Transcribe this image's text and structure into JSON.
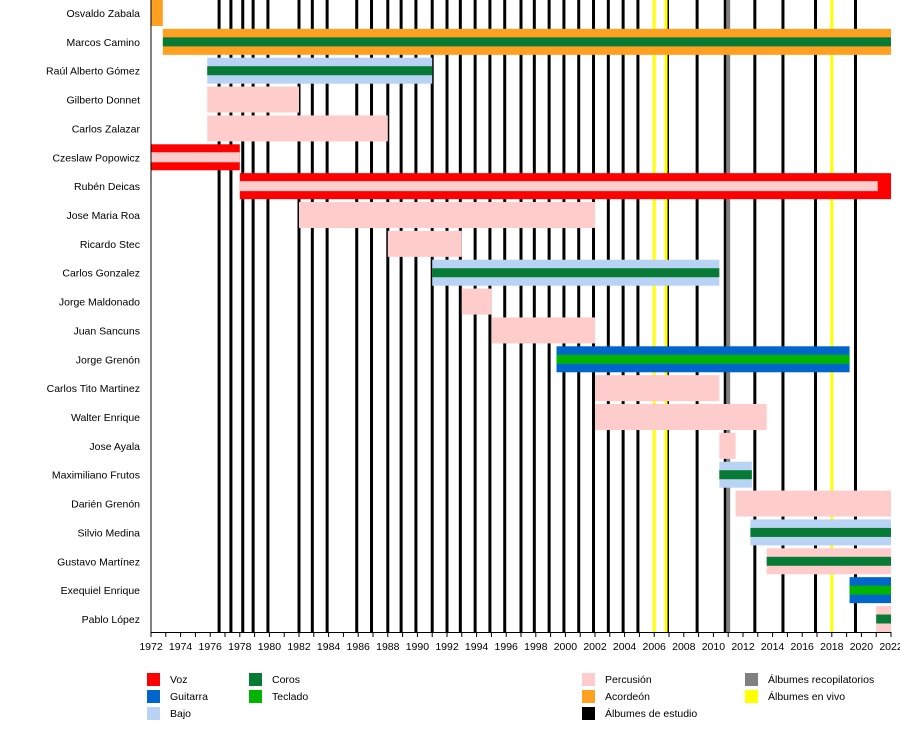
{
  "chart_data": {
    "type": "timeline",
    "xlim": [
      1972,
      2022
    ],
    "x_ticks": [
      1972,
      1974,
      1976,
      1978,
      1980,
      1982,
      1984,
      1986,
      1988,
      1990,
      1992,
      1994,
      1996,
      1998,
      2000,
      2002,
      2004,
      2006,
      2008,
      2010,
      2012,
      2014,
      2016,
      2018,
      2020,
      2022
    ],
    "colors": {
      "Voz": "#ff0000",
      "Guitarra": "#0066cc",
      "Bajo": "#b9d3f5",
      "Coros": "#077a35",
      "Teclado": "#00b400",
      "Percusión": "#ffcccc",
      "Acordeón": "#ffa020",
      "Álbumes recopilatorios": "#808080",
      "Álbumes en vivo": "#ffff00",
      "Álbumes de estudio": "#000000"
    },
    "members": [
      {
        "name": "Osvaldo Zabala",
        "bars": [
          {
            "start": 1972,
            "end": 1972.8,
            "role": "Acordeón"
          }
        ]
      },
      {
        "name": "Marcos Camino",
        "bars": [
          {
            "start": 1972.8,
            "end": 2022,
            "role": "Acordeón",
            "secondary": "Coros"
          }
        ]
      },
      {
        "name": "Raúl Alberto Gómez",
        "bars": [
          {
            "start": 1975.8,
            "end": 1991,
            "role": "Bajo",
            "secondary": "Coros"
          }
        ]
      },
      {
        "name": "Gilberto Donnet",
        "bars": [
          {
            "start": 1975.8,
            "end": 1982,
            "role": "Percusión"
          }
        ]
      },
      {
        "name": "Carlos Zalazar",
        "bars": [
          {
            "start": 1975.8,
            "end": 1988,
            "role": "Percusión"
          }
        ]
      },
      {
        "name": "Czeslaw Popowicz",
        "bars": [
          {
            "start": 1972,
            "end": 1978,
            "role": "Voz",
            "secondary": "Percusión"
          }
        ]
      },
      {
        "name": "Rubén Deicas",
        "bars": [
          {
            "start": 1978,
            "end": 2022,
            "role": "Voz",
            "secondary": "Percusión",
            "secondary_end": 2021.1
          }
        ]
      },
      {
        "name": "Jose Maria Roa",
        "bars": [
          {
            "start": 1982,
            "end": 2002,
            "role": "Percusión"
          }
        ]
      },
      {
        "name": "Ricardo Stec",
        "bars": [
          {
            "start": 1988,
            "end": 1993,
            "role": "Percusión"
          }
        ]
      },
      {
        "name": "Carlos Gonzalez",
        "bars": [
          {
            "start": 1991,
            "end": 2010.4,
            "role": "Bajo",
            "secondary": "Coros"
          }
        ]
      },
      {
        "name": "Jorge Maldonado",
        "bars": [
          {
            "start": 1993,
            "end": 1995,
            "role": "Percusión"
          }
        ]
      },
      {
        "name": "Juan Sancuns",
        "bars": [
          {
            "start": 1995,
            "end": 2002,
            "role": "Percusión"
          }
        ]
      },
      {
        "name": "Jorge Grenón",
        "bars": [
          {
            "start": 1999.4,
            "end": 2019.2,
            "role": "Guitarra",
            "secondary": "Teclado"
          }
        ]
      },
      {
        "name": "Carlos Tito Martinez",
        "bars": [
          {
            "start": 2002,
            "end": 2010.4,
            "role": "Percusión"
          }
        ]
      },
      {
        "name": "Walter Enrique",
        "bars": [
          {
            "start": 2002,
            "end": 2013.6,
            "role": "Percusión"
          }
        ]
      },
      {
        "name": "Jose Ayala",
        "bars": [
          {
            "start": 2010.4,
            "end": 2011.5,
            "role": "Percusión"
          }
        ]
      },
      {
        "name": "Maximiliano Frutos",
        "bars": [
          {
            "start": 2010.4,
            "end": 2012.6,
            "role": "Bajo",
            "secondary": "Coros"
          }
        ]
      },
      {
        "name": "Darién Grenón",
        "bars": [
          {
            "start": 2011.5,
            "end": 2022,
            "role": "Percusión"
          }
        ]
      },
      {
        "name": "Silvio Medina",
        "bars": [
          {
            "start": 2012.5,
            "end": 2022,
            "role": "Bajo",
            "secondary": "Coros"
          }
        ]
      },
      {
        "name": "Gustavo Martínez",
        "bars": [
          {
            "start": 2013.6,
            "end": 2022,
            "role": "Percusión",
            "secondary": "Coros"
          }
        ]
      },
      {
        "name": "Exequiel Enrique",
        "bars": [
          {
            "start": 2019.2,
            "end": 2022,
            "role": "Guitarra",
            "secondary": "Teclado"
          }
        ]
      },
      {
        "name": "Pablo López",
        "bars": [
          {
            "start": 2021,
            "end": 2022,
            "role": "Percusión",
            "secondary": "Coros"
          }
        ]
      }
    ],
    "studio_albums": [
      1976.6,
      1977.4,
      1978.2,
      1978.9,
      1979.9,
      1982,
      1982.9,
      1983.9,
      1985.9,
      1986.9,
      1988,
      1988.9,
      1989.9,
      1991,
      1992,
      1992.9,
      1993.9,
      1994.9,
      1995.9,
      1997,
      1997.9,
      1998.9,
      1999.9,
      2000.9,
      2001.9,
      2002.9,
      2003.9,
      2004.9,
      2006.9,
      2008.9,
      2010.8,
      2012.8,
      2014.7,
      2016.9,
      2019.6
    ],
    "live_albums": [
      2006,
      2006.8,
      2018
    ],
    "compilation_albums": [
      2011
    ],
    "legend": [
      {
        "label": "Voz",
        "col": 0,
        "row": 0
      },
      {
        "label": "Guitarra",
        "col": 0,
        "row": 1
      },
      {
        "label": "Bajo",
        "col": 0,
        "row": 2
      },
      {
        "label": "Coros",
        "col": 1,
        "row": 0
      },
      {
        "label": "Teclado",
        "col": 1,
        "row": 1
      },
      {
        "label": "Percusión",
        "col": 2,
        "row": 0
      },
      {
        "label": "Acordeón",
        "col": 2,
        "row": 1
      },
      {
        "label": "Álbumes de estudio",
        "col": 2,
        "row": 2
      },
      {
        "label": "Álbumes recopilatorios",
        "col": 3,
        "row": 0
      },
      {
        "label": "Álbumes en vivo",
        "col": 3,
        "row": 1
      }
    ]
  }
}
